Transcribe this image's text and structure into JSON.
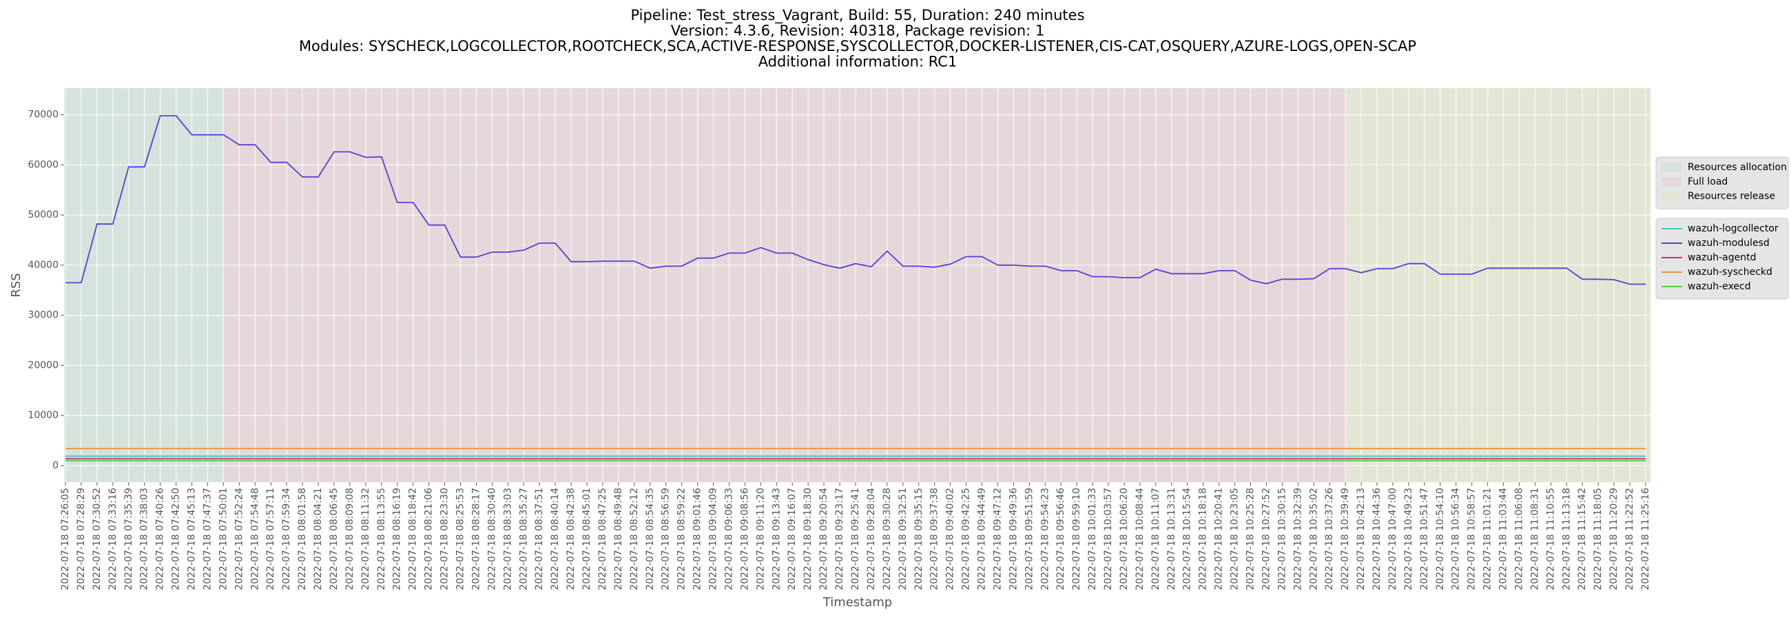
{
  "chart_data": {
    "type": "line",
    "title_lines": [
      "Pipeline: Test_stress_Vagrant, Build: 55, Duration: 240 minutes",
      "Version: 4.3.6, Revision: 40318, Package revision: 1",
      "Modules: SYSCHECK,LOGCOLLECTOR,ROOTCHECK,SCA,ACTIVE-RESPONSE,SYSCOLLECTOR,DOCKER-LISTENER,CIS-CAT,OSQUERY,AZURE-LOGS,OPEN-SCAP",
      "Additional information: RC1"
    ],
    "xlabel": "Timestamp",
    "ylabel": "RSS",
    "categories": [
      "2022-07-18 07:26:05",
      "2022-07-18 07:28:29",
      "2022-07-18 07:30:52",
      "2022-07-18 07:33:16",
      "2022-07-18 07:35:39",
      "2022-07-18 07:38:03",
      "2022-07-18 07:40:26",
      "2022-07-18 07:42:50",
      "2022-07-18 07:45:13",
      "2022-07-18 07:47:37",
      "2022-07-18 07:50:01",
      "2022-07-18 07:52:24",
      "2022-07-18 07:54:48",
      "2022-07-18 07:57:11",
      "2022-07-18 07:59:34",
      "2022-07-18 08:01:58",
      "2022-07-18 08:04:21",
      "2022-07-18 08:06:45",
      "2022-07-18 08:09:08",
      "2022-07-18 08:11:32",
      "2022-07-18 08:13:55",
      "2022-07-18 08:16:19",
      "2022-07-18 08:18:42",
      "2022-07-18 08:21:06",
      "2022-07-18 08:23:30",
      "2022-07-18 08:25:53",
      "2022-07-18 08:28:17",
      "2022-07-18 08:30:40",
      "2022-07-18 08:33:03",
      "2022-07-18 08:35:27",
      "2022-07-18 08:37:51",
      "2022-07-18 08:40:14",
      "2022-07-18 08:42:38",
      "2022-07-18 08:45:01",
      "2022-07-18 08:47:25",
      "2022-07-18 08:49:48",
      "2022-07-18 08:52:12",
      "2022-07-18 08:54:35",
      "2022-07-18 08:56:59",
      "2022-07-18 08:59:22",
      "2022-07-18 09:01:46",
      "2022-07-18 09:04:09",
      "2022-07-18 09:06:33",
      "2022-07-18 09:08:56",
      "2022-07-18 09:11:20",
      "2022-07-18 09:13:43",
      "2022-07-18 09:16:07",
      "2022-07-18 09:18:30",
      "2022-07-18 09:20:54",
      "2022-07-18 09:23:17",
      "2022-07-18 09:25:41",
      "2022-07-18 09:28:04",
      "2022-07-18 09:30:28",
      "2022-07-18 09:32:51",
      "2022-07-18 09:35:15",
      "2022-07-18 09:37:38",
      "2022-07-18 09:40:02",
      "2022-07-18 09:42:25",
      "2022-07-18 09:44:49",
      "2022-07-18 09:47:12",
      "2022-07-18 09:49:36",
      "2022-07-18 09:51:59",
      "2022-07-18 09:54:23",
      "2022-07-18 09:56:46",
      "2022-07-18 09:59:10",
      "2022-07-18 10:01:33",
      "2022-07-18 10:03:57",
      "2022-07-18 10:06:20",
      "2022-07-18 10:08:44",
      "2022-07-18 10:11:07",
      "2022-07-18 10:13:31",
      "2022-07-18 10:15:54",
      "2022-07-18 10:18:18",
      "2022-07-18 10:20:41",
      "2022-07-18 10:23:05",
      "2022-07-18 10:25:28",
      "2022-07-18 10:27:52",
      "2022-07-18 10:30:15",
      "2022-07-18 10:32:39",
      "2022-07-18 10:35:02",
      "2022-07-18 10:37:26",
      "2022-07-18 10:39:49",
      "2022-07-18 10:42:13",
      "2022-07-18 10:44:36",
      "2022-07-18 10:47:00",
      "2022-07-18 10:49:23",
      "2022-07-18 10:51:47",
      "2022-07-18 10:54:10",
      "2022-07-18 10:56:34",
      "2022-07-18 10:58:57",
      "2022-07-18 11:01:21",
      "2022-07-18 11:03:44",
      "2022-07-18 11:06:08",
      "2022-07-18 11:08:31",
      "2022-07-18 11:10:55",
      "2022-07-18 11:13:18",
      "2022-07-18 11:15:42",
      "2022-07-18 11:18:05",
      "2022-07-18 11:20:29",
      "2022-07-18 11:22:52",
      "2022-07-18 11:25:16"
    ],
    "regions": [
      {
        "name": "Resources allocation",
        "color": "#d6e2dc",
        "start": "2022-07-18 07:26:05",
        "end": "2022-07-18 07:50:01"
      },
      {
        "name": "Full load",
        "color": "#e5d7da",
        "start": "2022-07-18 07:50:01",
        "end": "2022-07-18 10:39:49"
      },
      {
        "name": "Resources release",
        "color": "#e3e5d5",
        "start": "2022-07-18 10:39:49",
        "end": "2022-07-18 11:25:16"
      }
    ],
    "series": [
      {
        "name": "wazuh-logcollector",
        "color": "#3ec9c0",
        "values": [
          1900,
          1900,
          1900,
          1900,
          1900,
          1900,
          1900,
          1900,
          1900,
          1900,
          1900,
          1900,
          1900,
          1900,
          1900,
          1900,
          1900,
          1900,
          1900,
          1900,
          1900,
          1900,
          1900,
          1900,
          1900,
          1900,
          1900,
          1900,
          1900,
          1900,
          1900,
          1900,
          1900,
          1900,
          1900,
          1900,
          1900,
          1900,
          1900,
          1900,
          1900,
          1900,
          1900,
          1900,
          1900,
          1900,
          1900,
          1900,
          1900,
          1900,
          1900,
          1900,
          1900,
          1900,
          1900,
          1900,
          1900,
          1900,
          1900,
          1900,
          1900,
          1900,
          1900,
          1900,
          1900,
          1900,
          1900,
          1900,
          1900,
          1900,
          1900,
          1900,
          1900,
          1900,
          1900,
          1900,
          1900,
          1900,
          1900,
          1900,
          1900,
          1900,
          1900,
          1900,
          1900,
          1900,
          1900,
          1900,
          1900,
          1900,
          1900,
          1900,
          1900,
          1900,
          1900,
          1900,
          1900,
          1900,
          1900,
          1900,
          1900
        ]
      },
      {
        "name": "wazuh-modulesd",
        "color": "#5a3fd4",
        "values": [
          36500,
          36500,
          48200,
          48200,
          59600,
          59600,
          69800,
          69800,
          66000,
          66000,
          66000,
          64000,
          64000,
          60500,
          60500,
          57600,
          57600,
          62600,
          62600,
          61500,
          61600,
          52500,
          52500,
          48000,
          48000,
          41600,
          41600,
          42600,
          42600,
          43000,
          44400,
          44400,
          40700,
          40700,
          40800,
          40800,
          40800,
          39400,
          39800,
          39800,
          41400,
          41400,
          42400,
          42400,
          43500,
          42400,
          42400,
          41100,
          40100,
          39400,
          40300,
          39700,
          42800,
          39800,
          39800,
          39600,
          40200,
          41700,
          41700,
          40000,
          40000,
          39800,
          39800,
          38900,
          38900,
          37700,
          37700,
          37500,
          37500,
          39200,
          38300,
          38300,
          38300,
          38900,
          38900,
          37000,
          36300,
          37200,
          37200,
          37300,
          39300,
          39300,
          38500,
          39300,
          39300,
          40300,
          40300,
          38200,
          38200,
          38200,
          39400,
          39400,
          39400,
          39400,
          39400,
          39400,
          37200,
          37200,
          37100,
          36200,
          36200
        ]
      },
      {
        "name": "wazuh-agentd",
        "color": "#d2306e",
        "values": [
          1400,
          1400,
          1400,
          1400,
          1400,
          1400,
          1400,
          1400,
          1400,
          1400,
          1400,
          1400,
          1400,
          1400,
          1400,
          1400,
          1400,
          1400,
          1400,
          1400,
          1400,
          1400,
          1400,
          1400,
          1400,
          1400,
          1400,
          1400,
          1400,
          1400,
          1400,
          1400,
          1400,
          1400,
          1400,
          1400,
          1400,
          1400,
          1400,
          1400,
          1400,
          1400,
          1400,
          1400,
          1400,
          1400,
          1400,
          1400,
          1400,
          1400,
          1400,
          1400,
          1400,
          1400,
          1400,
          1400,
          1400,
          1400,
          1400,
          1400,
          1400,
          1400,
          1400,
          1400,
          1400,
          1400,
          1400,
          1400,
          1400,
          1400,
          1400,
          1400,
          1400,
          1400,
          1400,
          1400,
          1400,
          1400,
          1400,
          1400,
          1400,
          1400,
          1400,
          1400,
          1400,
          1400,
          1400,
          1400,
          1400,
          1400,
          1400,
          1400,
          1400,
          1400,
          1400,
          1400,
          1400,
          1400,
          1400,
          1400,
          1400
        ]
      },
      {
        "name": "wazuh-syscheckd",
        "color": "#e8953a",
        "values": [
          3400,
          3400,
          3400,
          3400,
          3400,
          3400,
          3400,
          3400,
          3400,
          3400,
          3400,
          3400,
          3400,
          3400,
          3400,
          3400,
          3400,
          3400,
          3400,
          3400,
          3400,
          3400,
          3400,
          3400,
          3400,
          3400,
          3400,
          3400,
          3400,
          3400,
          3400,
          3400,
          3400,
          3400,
          3400,
          3400,
          3400,
          3400,
          3400,
          3400,
          3400,
          3400,
          3400,
          3400,
          3400,
          3400,
          3400,
          3400,
          3400,
          3400,
          3400,
          3400,
          3400,
          3400,
          3400,
          3400,
          3400,
          3400,
          3400,
          3400,
          3400,
          3400,
          3400,
          3400,
          3400,
          3400,
          3400,
          3400,
          3400,
          3400,
          3400,
          3400,
          3400,
          3400,
          3400,
          3400,
          3400,
          3400,
          3400,
          3400,
          3400,
          3400,
          3400,
          3400,
          3400,
          3400,
          3400,
          3400,
          3400,
          3400,
          3400,
          3400,
          3400,
          3400,
          3400,
          3400,
          3400,
          3400,
          3400,
          3400,
          3400
        ]
      },
      {
        "name": "wazuh-execd",
        "color": "#4ccf3c",
        "values": [
          1000,
          1000,
          1000,
          1000,
          1000,
          1000,
          1000,
          1000,
          1000,
          1000,
          1000,
          1000,
          1000,
          1000,
          1000,
          1000,
          1000,
          1000,
          1000,
          1000,
          1000,
          1000,
          1000,
          1000,
          1000,
          1000,
          1000,
          1000,
          1000,
          1000,
          1000,
          1000,
          1000,
          1000,
          1000,
          1000,
          1000,
          1000,
          1000,
          1000,
          1000,
          1000,
          1000,
          1000,
          1000,
          1000,
          1000,
          1000,
          1000,
          1000,
          1000,
          1000,
          1000,
          1000,
          1000,
          1000,
          1000,
          1000,
          1000,
          1000,
          1000,
          1000,
          1000,
          1000,
          1000,
          1000,
          1000,
          1000,
          1000,
          1000,
          1000,
          1000,
          1000,
          1000,
          1000,
          1000,
          1000,
          1000,
          1000,
          1000,
          1000,
          1000,
          1000,
          1000,
          1000,
          1000,
          1000,
          1000,
          1000,
          1000,
          1000,
          1000,
          1000,
          1000,
          1000,
          1000,
          1000,
          1000,
          1000,
          1000,
          1000
        ]
      }
    ],
    "ylim": [
      -3300,
      75300
    ],
    "yticks": [
      0,
      10000,
      20000,
      30000,
      40000,
      50000,
      60000,
      70000
    ],
    "grid": true,
    "legend": "right"
  }
}
